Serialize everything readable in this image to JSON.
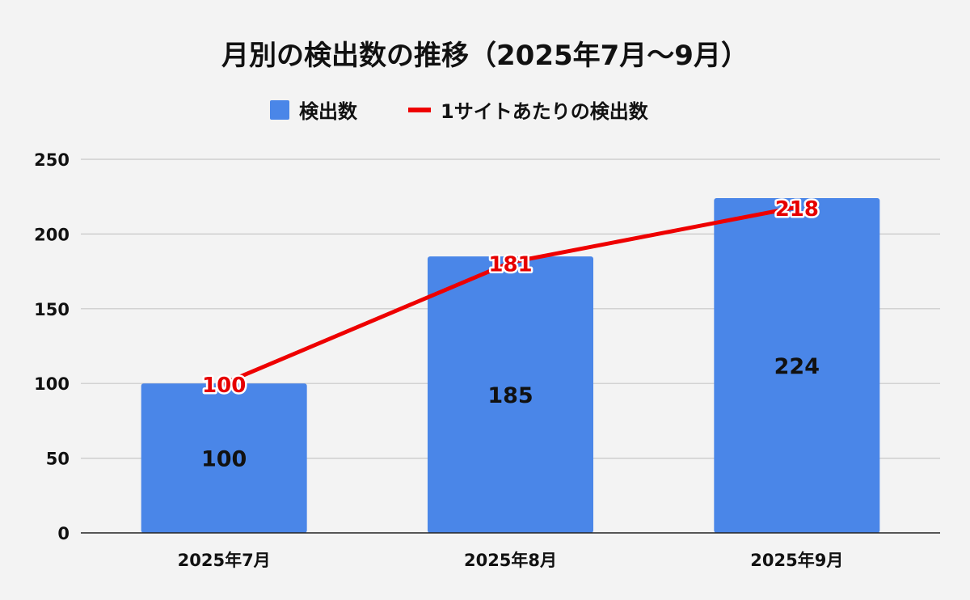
{
  "chart_data": {
    "type": "bar",
    "title": "月別の検出数の推移（2025年7月～9月）",
    "categories": [
      "2025年7月",
      "2025年8月",
      "2025年9月"
    ],
    "series": [
      {
        "name": "検出数",
        "type": "bar",
        "values": [
          100,
          185,
          224
        ],
        "color": "#4a86e8"
      },
      {
        "name": "1サイトあたりの検出数",
        "type": "line",
        "values": [
          100,
          181,
          218
        ],
        "color": "#ee0000"
      }
    ],
    "ylim": [
      0,
      250
    ],
    "yticks": [
      "0",
      "50",
      "100",
      "150",
      "200",
      "250"
    ],
    "xlabel": "",
    "ylabel": "",
    "grid": true,
    "legend_position": "top"
  }
}
